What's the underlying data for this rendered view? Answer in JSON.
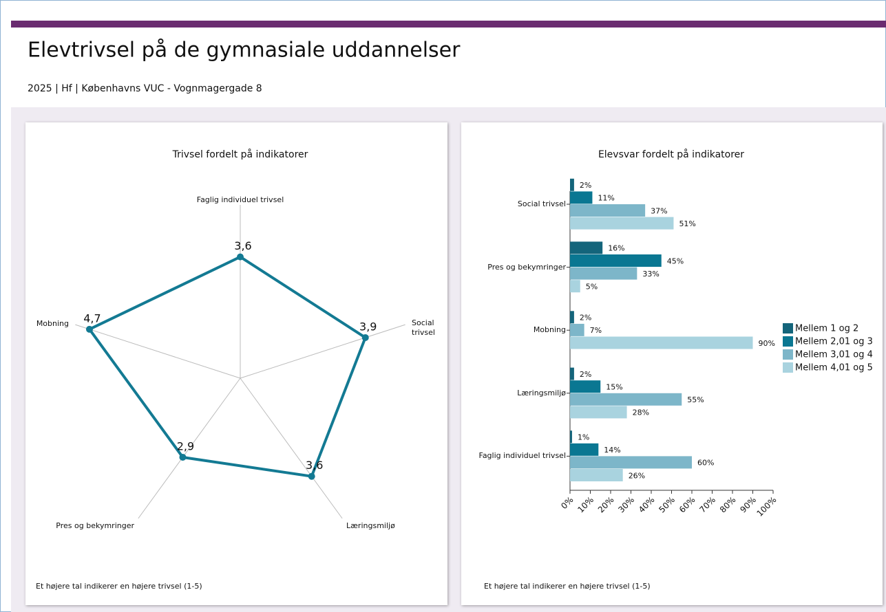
{
  "header": {
    "title": "Elevtrivsel på de gymnasiale uddannelser",
    "subtitle": "2025 | Hf | Københavns VUC - Vognmagergade 8"
  },
  "chart_data": [
    {
      "type": "radar",
      "title": "Trivsel fordelt på indikatorer",
      "categories": [
        "Faglig individuel trivsel",
        "Social trivsel",
        "Læringsmiljø",
        "Pres og bekymringer",
        "Mobning"
      ],
      "values": [
        3.6,
        3.9,
        3.6,
        2.9,
        4.7
      ],
      "value_labels": [
        "3,6",
        "3,9",
        "3,6",
        "2,9",
        "4,7"
      ],
      "rlim": [
        0,
        5
      ],
      "color": "#137a93",
      "note": "Et højere tal indikerer en højere trivsel (1-5)"
    },
    {
      "type": "hbar",
      "title": "Elevsvar fordelt på indikatorer",
      "categories": [
        "Social trivsel",
        "Pres og bekymringer",
        "Mobning",
        "Læringsmiljø",
        "Faglig individuel trivsel"
      ],
      "series": [
        {
          "name": "Mellem 1 og 2",
          "color": "#14657b",
          "values": [
            2,
            16,
            2,
            2,
            1
          ],
          "value_labels": [
            "2%",
            "16%",
            "2%",
            "2%",
            "1%"
          ]
        },
        {
          "name": "Mellem 2,01 og 3",
          "color": "#0a7792",
          "values": [
            11,
            45,
            null,
            15,
            14
          ],
          "value_labels": [
            "11%",
            "45%",
            null,
            "15%",
            "14%"
          ]
        },
        {
          "name": "Mellem 3,01 og 4",
          "color": "#7db6c9",
          "values": [
            37,
            33,
            7,
            55,
            60
          ],
          "value_labels": [
            "37%",
            "33%",
            "7%",
            "55%",
            "60%"
          ]
        },
        {
          "name": "Mellem 4,01 og 5",
          "color": "#a9d3df",
          "values": [
            51,
            5,
            90,
            28,
            26
          ],
          "value_labels": [
            "51%",
            "5%",
            "90%",
            "28%",
            "26%"
          ]
        }
      ],
      "xlim": [
        0,
        100
      ],
      "xticks": [
        {
          "value": 0,
          "label": "0%"
        },
        {
          "value": 10,
          "label": "10%"
        },
        {
          "value": 20,
          "label": "20%"
        },
        {
          "value": 30,
          "label": "30%"
        },
        {
          "value": 40,
          "label": "40%"
        },
        {
          "value": 50,
          "label": "50%"
        },
        {
          "value": 60,
          "label": "60%"
        },
        {
          "value": 70,
          "label": "70%"
        },
        {
          "value": 80,
          "label": "80%"
        },
        {
          "value": 90,
          "label": "90%"
        },
        {
          "value": 100,
          "label": "100%"
        }
      ],
      "legend": "right",
      "note": "Et højere tal indikerer en højere trivsel (1-5)"
    }
  ]
}
